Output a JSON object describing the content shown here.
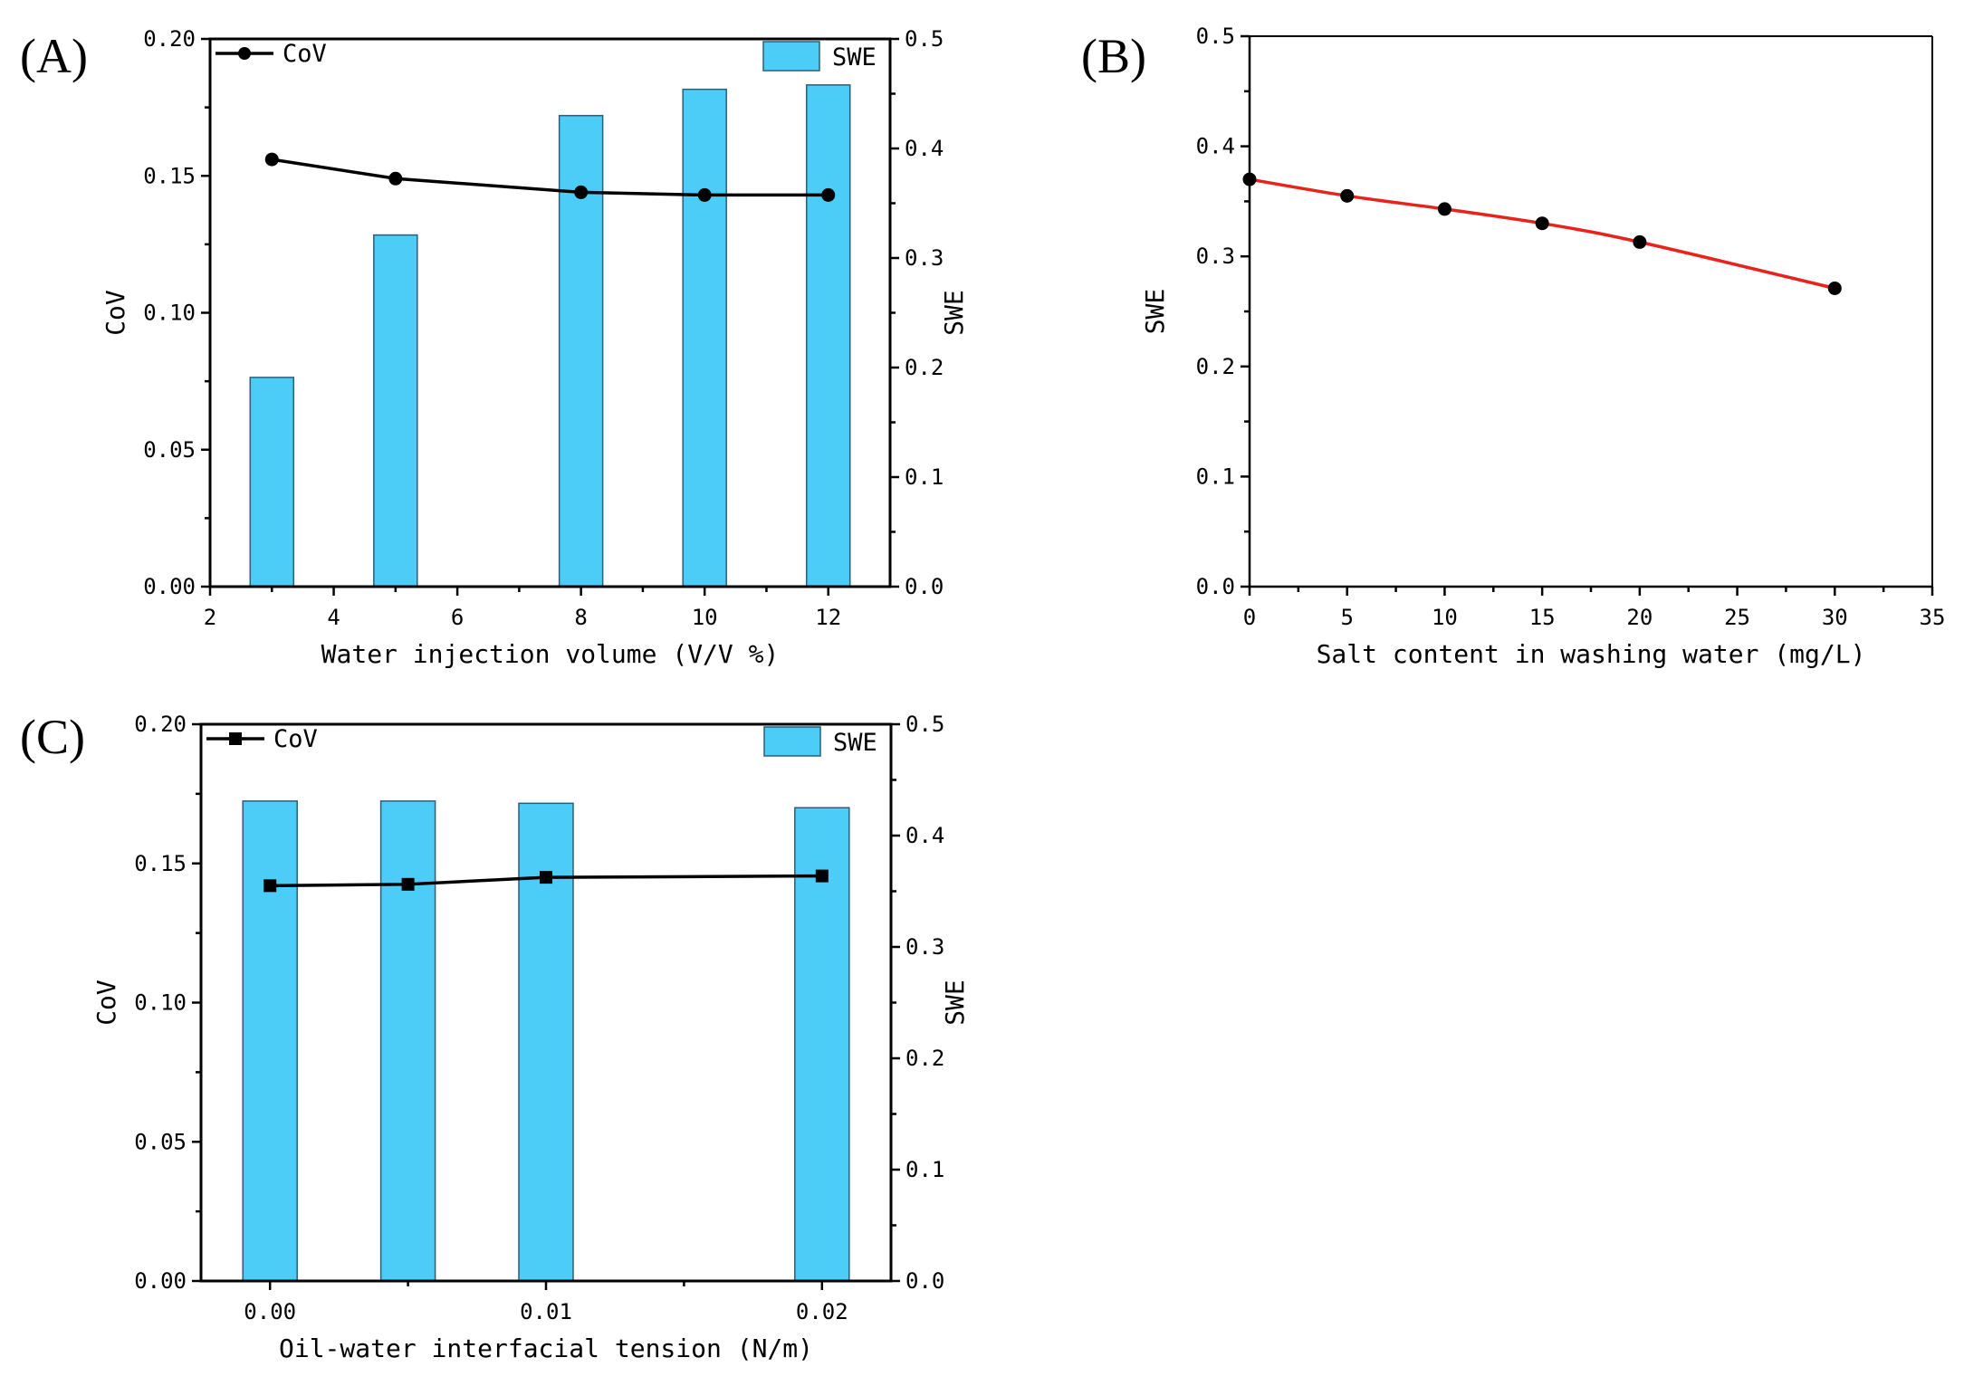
{
  "colors": {
    "bar": "#4ccdf7",
    "bar_edge": "#2a5f7a",
    "line_black": "#000000",
    "line_red": "#e8231c"
  },
  "chart_data": [
    {
      "id": "A",
      "panel_label": "(A)",
      "type": "bar+line",
      "xlabel": "Water injection volume (V/V %)",
      "ylabel_left": "CoV",
      "ylabel_right": "SWE",
      "xlim": [
        2,
        13
      ],
      "x_ticks": [
        2,
        4,
        6,
        8,
        10,
        12
      ],
      "x_tick_labels": [
        "2",
        "4",
        "6",
        "8",
        "10",
        "12"
      ],
      "ylim_left": [
        0,
        0.2
      ],
      "y_left_ticks": [
        0,
        0.05,
        0.1,
        0.15,
        0.2
      ],
      "y_left_tick_labels": [
        "0.00",
        "0.05",
        "0.10",
        "0.15",
        "0.20"
      ],
      "ylim_right": [
        0,
        0.5
      ],
      "y_right_ticks": [
        0,
        0.1,
        0.2,
        0.3,
        0.4,
        0.5
      ],
      "y_right_tick_labels": [
        "0.0",
        "0.1",
        "0.2",
        "0.3",
        "0.4",
        "0.5"
      ],
      "x": [
        3,
        5,
        8,
        10,
        12
      ],
      "series": [
        {
          "name": "CoV",
          "type": "line",
          "axis": "left",
          "marker": "circle",
          "values": [
            0.156,
            0.149,
            0.144,
            0.143,
            0.143
          ]
        },
        {
          "name": "SWE",
          "type": "bar",
          "axis": "right",
          "values": [
            0.191,
            0.321,
            0.43,
            0.454,
            0.458
          ]
        }
      ],
      "legend": [
        {
          "label": "CoV",
          "position": "top-left"
        },
        {
          "label": "SWE",
          "position": "top-right"
        }
      ]
    },
    {
      "id": "B",
      "panel_label": "(B)",
      "type": "line",
      "xlabel": "Salt content in washing water (mg/L)",
      "ylabel_left": "SWE",
      "xlim": [
        0,
        35
      ],
      "x_ticks": [
        0,
        5,
        10,
        15,
        20,
        25,
        30,
        35
      ],
      "x_tick_labels": [
        "0",
        "5",
        "10",
        "15",
        "20",
        "25",
        "30",
        "35"
      ],
      "ylim_left": [
        0,
        0.5
      ],
      "y_left_ticks": [
        0,
        0.1,
        0.2,
        0.3,
        0.4,
        0.5
      ],
      "y_left_tick_labels": [
        "0.0",
        "0.1",
        "0.2",
        "0.3",
        "0.4",
        "0.5"
      ],
      "x": [
        0,
        5,
        10,
        15,
        20,
        30
      ],
      "series": [
        {
          "name": "SWE",
          "type": "line",
          "axis": "left",
          "marker": "circle",
          "values": [
            0.37,
            0.355,
            0.343,
            0.33,
            0.313,
            0.271
          ]
        }
      ]
    },
    {
      "id": "C",
      "panel_label": "(C)",
      "type": "bar+line",
      "xlabel": "Oil-water interfacial tension (N/m)",
      "ylabel_left": "CoV",
      "ylabel_right": "SWE",
      "xlim": [
        -0.0025,
        0.0225
      ],
      "x_ticks": [
        0,
        0.01,
        0.02
      ],
      "x_tick_labels": [
        "0.00",
        "0.01",
        "0.02"
      ],
      "x_minor_ticks": [
        0.005,
        0.015
      ],
      "ylim_left": [
        0,
        0.2
      ],
      "y_left_ticks": [
        0,
        0.05,
        0.1,
        0.15,
        0.2
      ],
      "y_left_tick_labels": [
        "0.00",
        "0.05",
        "0.10",
        "0.15",
        "0.20"
      ],
      "ylim_right": [
        0,
        0.5
      ],
      "y_right_ticks": [
        0,
        0.1,
        0.2,
        0.3,
        0.4,
        0.5
      ],
      "y_right_tick_labels": [
        "0.0",
        "0.1",
        "0.2",
        "0.3",
        "0.4",
        "0.5"
      ],
      "x": [
        0,
        0.005,
        0.01,
        0.02
      ],
      "series": [
        {
          "name": "CoV",
          "type": "line",
          "axis": "left",
          "marker": "square",
          "values": [
            0.142,
            0.1425,
            0.145,
            0.1455
          ]
        },
        {
          "name": "SWE",
          "type": "bar",
          "axis": "right",
          "values": [
            0.431,
            0.431,
            0.429,
            0.425
          ]
        }
      ],
      "legend": [
        {
          "label": "CoV",
          "position": "top-left"
        },
        {
          "label": "SWE",
          "position": "top-right"
        }
      ]
    }
  ]
}
